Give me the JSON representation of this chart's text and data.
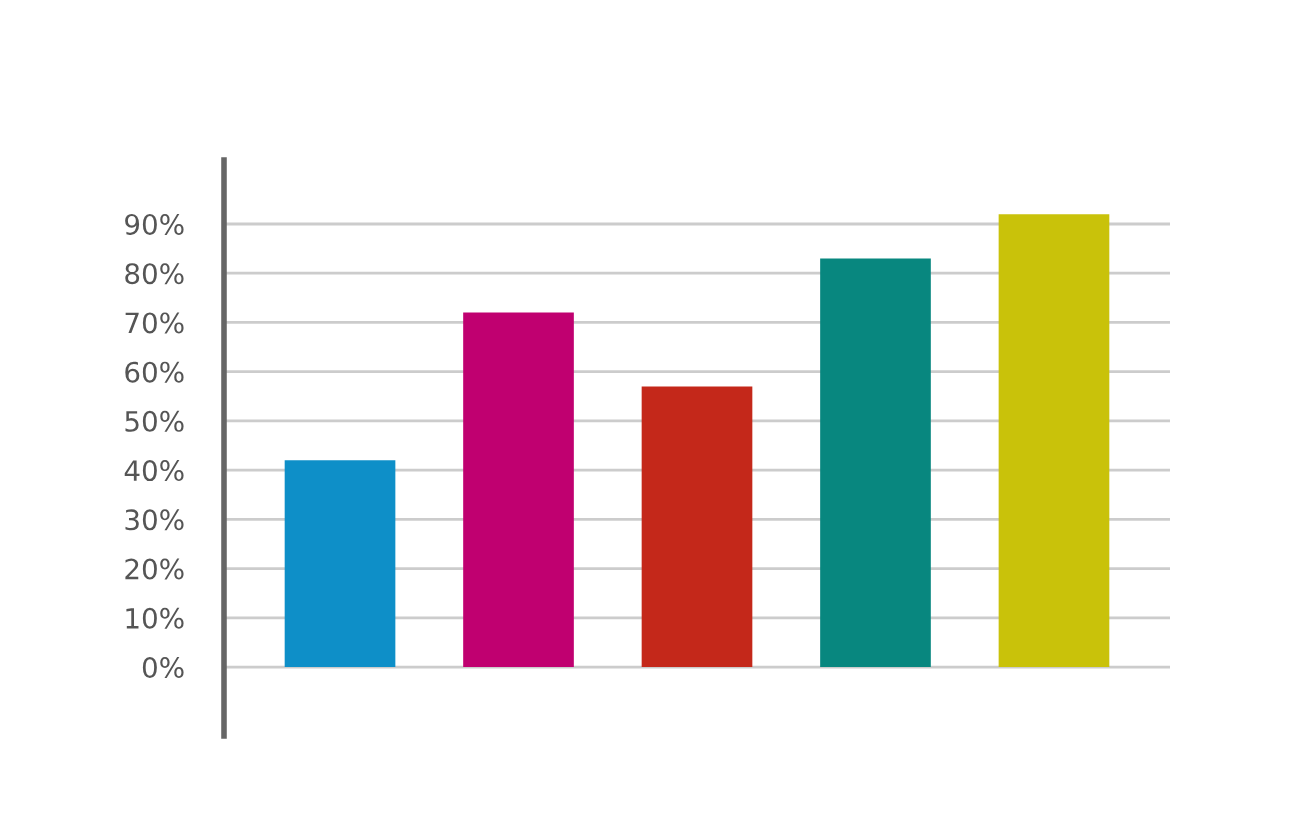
{
  "chart_data": {
    "type": "bar",
    "categories": [
      null,
      null,
      null,
      null,
      null
    ],
    "values": [
      42,
      72,
      57,
      83,
      92
    ],
    "colors": [
      "#0e8fc8",
      "#c00070",
      "#c4281a",
      "#08877f",
      "#c9c20a"
    ],
    "ylim": [
      -14,
      103
    ],
    "yticks": [
      {
        "value": 0,
        "label": "0%"
      },
      {
        "value": 10,
        "label": "10%"
      },
      {
        "value": 20,
        "label": "20%"
      },
      {
        "value": 30,
        "label": "30%"
      },
      {
        "value": 40,
        "label": "40%"
      },
      {
        "value": 50,
        "label": "50%"
      },
      {
        "value": 60,
        "label": "60%"
      },
      {
        "value": 70,
        "label": "70%"
      },
      {
        "value": 80,
        "label": "80%"
      },
      {
        "value": 90,
        "label": "90%"
      }
    ],
    "grid": "y",
    "tick_labels": "y"
  }
}
